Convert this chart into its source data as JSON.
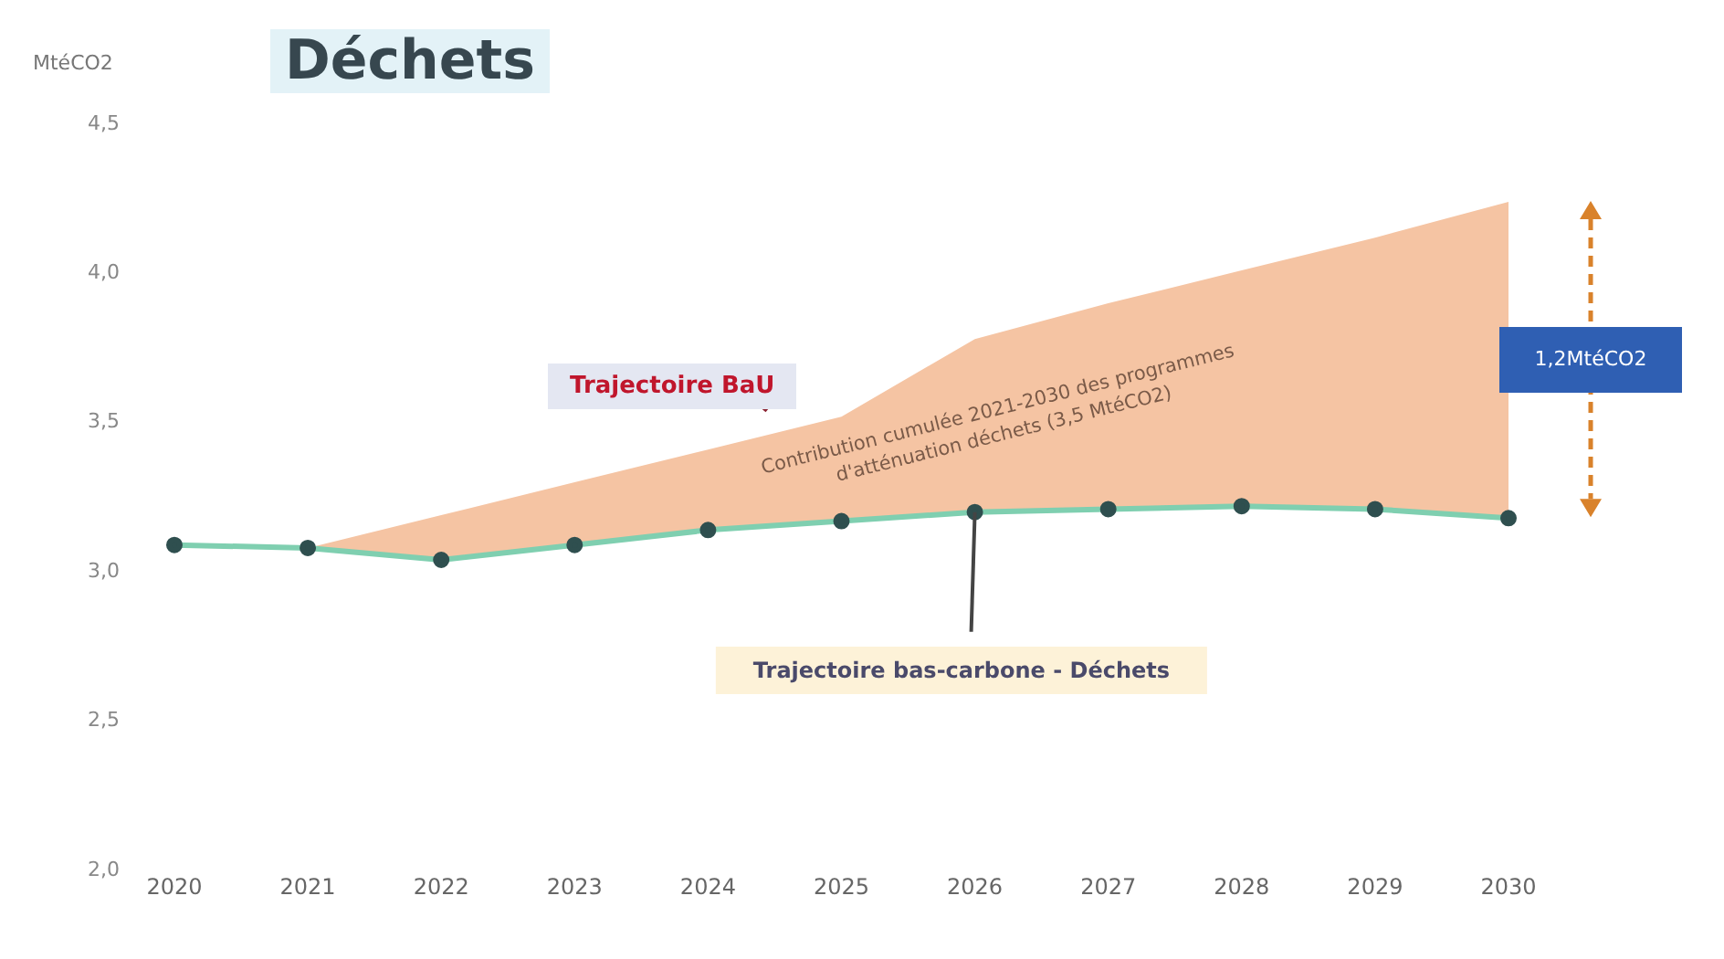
{
  "chart_data": {
    "type": "line",
    "title": "Déchets",
    "ylabel": "MtéCO2",
    "categories": [
      "2020",
      "2021",
      "2022",
      "2023",
      "2024",
      "2025",
      "2026",
      "2027",
      "2028",
      "2029",
      "2030"
    ],
    "series": [
      {
        "name": "Trajectoire bas-carbone - Déchets",
        "color": "#7fcfb0",
        "values": [
          3.09,
          3.08,
          3.04,
          3.09,
          3.14,
          3.17,
          3.2,
          3.21,
          3.22,
          3.21,
          3.18
        ]
      },
      {
        "name": "Trajectoire BaU",
        "type": "area",
        "marker": "none",
        "color": "#f5c4a3",
        "values": [
          null,
          3.08,
          3.19,
          3.3,
          3.41,
          3.52,
          3.78,
          3.9,
          4.01,
          4.12,
          4.24
        ]
      }
    ],
    "ylim": [
      2.0,
      4.5
    ],
    "yticks": [
      {
        "value": 2.0,
        "label": "2,0"
      },
      {
        "value": 2.5,
        "label": "2,5"
      },
      {
        "value": 3.0,
        "label": "3,0"
      },
      {
        "value": 3.5,
        "label": "3,5"
      },
      {
        "value": 4.0,
        "label": "4,0"
      },
      {
        "value": 4.5,
        "label": "4,5"
      }
    ],
    "annotations": [
      "Contribution cumulée 2021-2030 des programmes d'atténuation déchets (3,5 MtéCO2)",
      "1,2MtéCO2"
    ],
    "marker": "circle",
    "grid": false,
    "legend": false
  }
}
